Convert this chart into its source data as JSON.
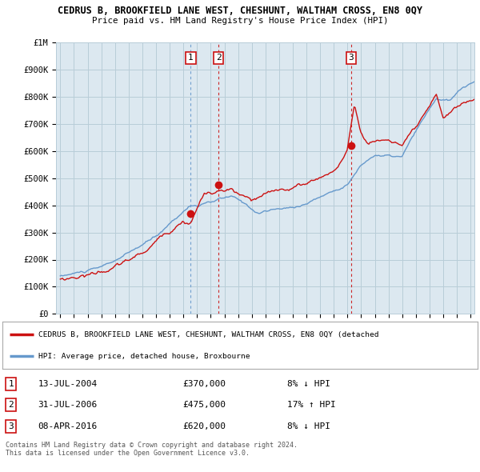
{
  "title": "CEDRUS B, BROOKFIELD LANE WEST, CHESHUNT, WALTHAM CROSS, EN8 0QY",
  "subtitle": "Price paid vs. HM Land Registry's House Price Index (HPI)",
  "ylabel_ticks": [
    "£0",
    "£100K",
    "£200K",
    "£300K",
    "£400K",
    "£500K",
    "£600K",
    "£700K",
    "£800K",
    "£900K",
    "£1M"
  ],
  "ytick_values": [
    0,
    100000,
    200000,
    300000,
    400000,
    500000,
    600000,
    700000,
    800000,
    900000,
    1000000
  ],
  "ylim": [
    0,
    1000000
  ],
  "xlim_left": 1994.7,
  "xlim_right": 2025.3,
  "background_color": "#ffffff",
  "chart_bg_color": "#dce8f0",
  "grid_color": "#b8cdd8",
  "hpi_color": "#6699cc",
  "price_color": "#cc1111",
  "sale_marker_color": "#cc1111",
  "sales": [
    {
      "year": 2004.54,
      "price": 370000,
      "label": "1",
      "vline_color": "#6699cc"
    },
    {
      "year": 2006.58,
      "price": 475000,
      "label": "2",
      "vline_color": "#cc1111"
    },
    {
      "year": 2016.27,
      "price": 620000,
      "label": "3",
      "vline_color": "#cc1111"
    }
  ],
  "legend_property": "CEDRUS B, BROOKFIELD LANE WEST, CHESHUNT, WALTHAM CROSS, EN8 0QY (detached",
  "legend_hpi": "HPI: Average price, detached house, Broxbourne",
  "table_rows": [
    {
      "num": "1",
      "date": "13-JUL-2004",
      "price": "£370,000",
      "hpi": "8% ↓ HPI"
    },
    {
      "num": "2",
      "date": "31-JUL-2006",
      "price": "£475,000",
      "hpi": "17% ↑ HPI"
    },
    {
      "num": "3",
      "date": "08-APR-2016",
      "price": "£620,000",
      "hpi": "8% ↓ HPI"
    }
  ],
  "footer": "Contains HM Land Registry data © Crown copyright and database right 2024.\nThis data is licensed under the Open Government Licence v3.0."
}
